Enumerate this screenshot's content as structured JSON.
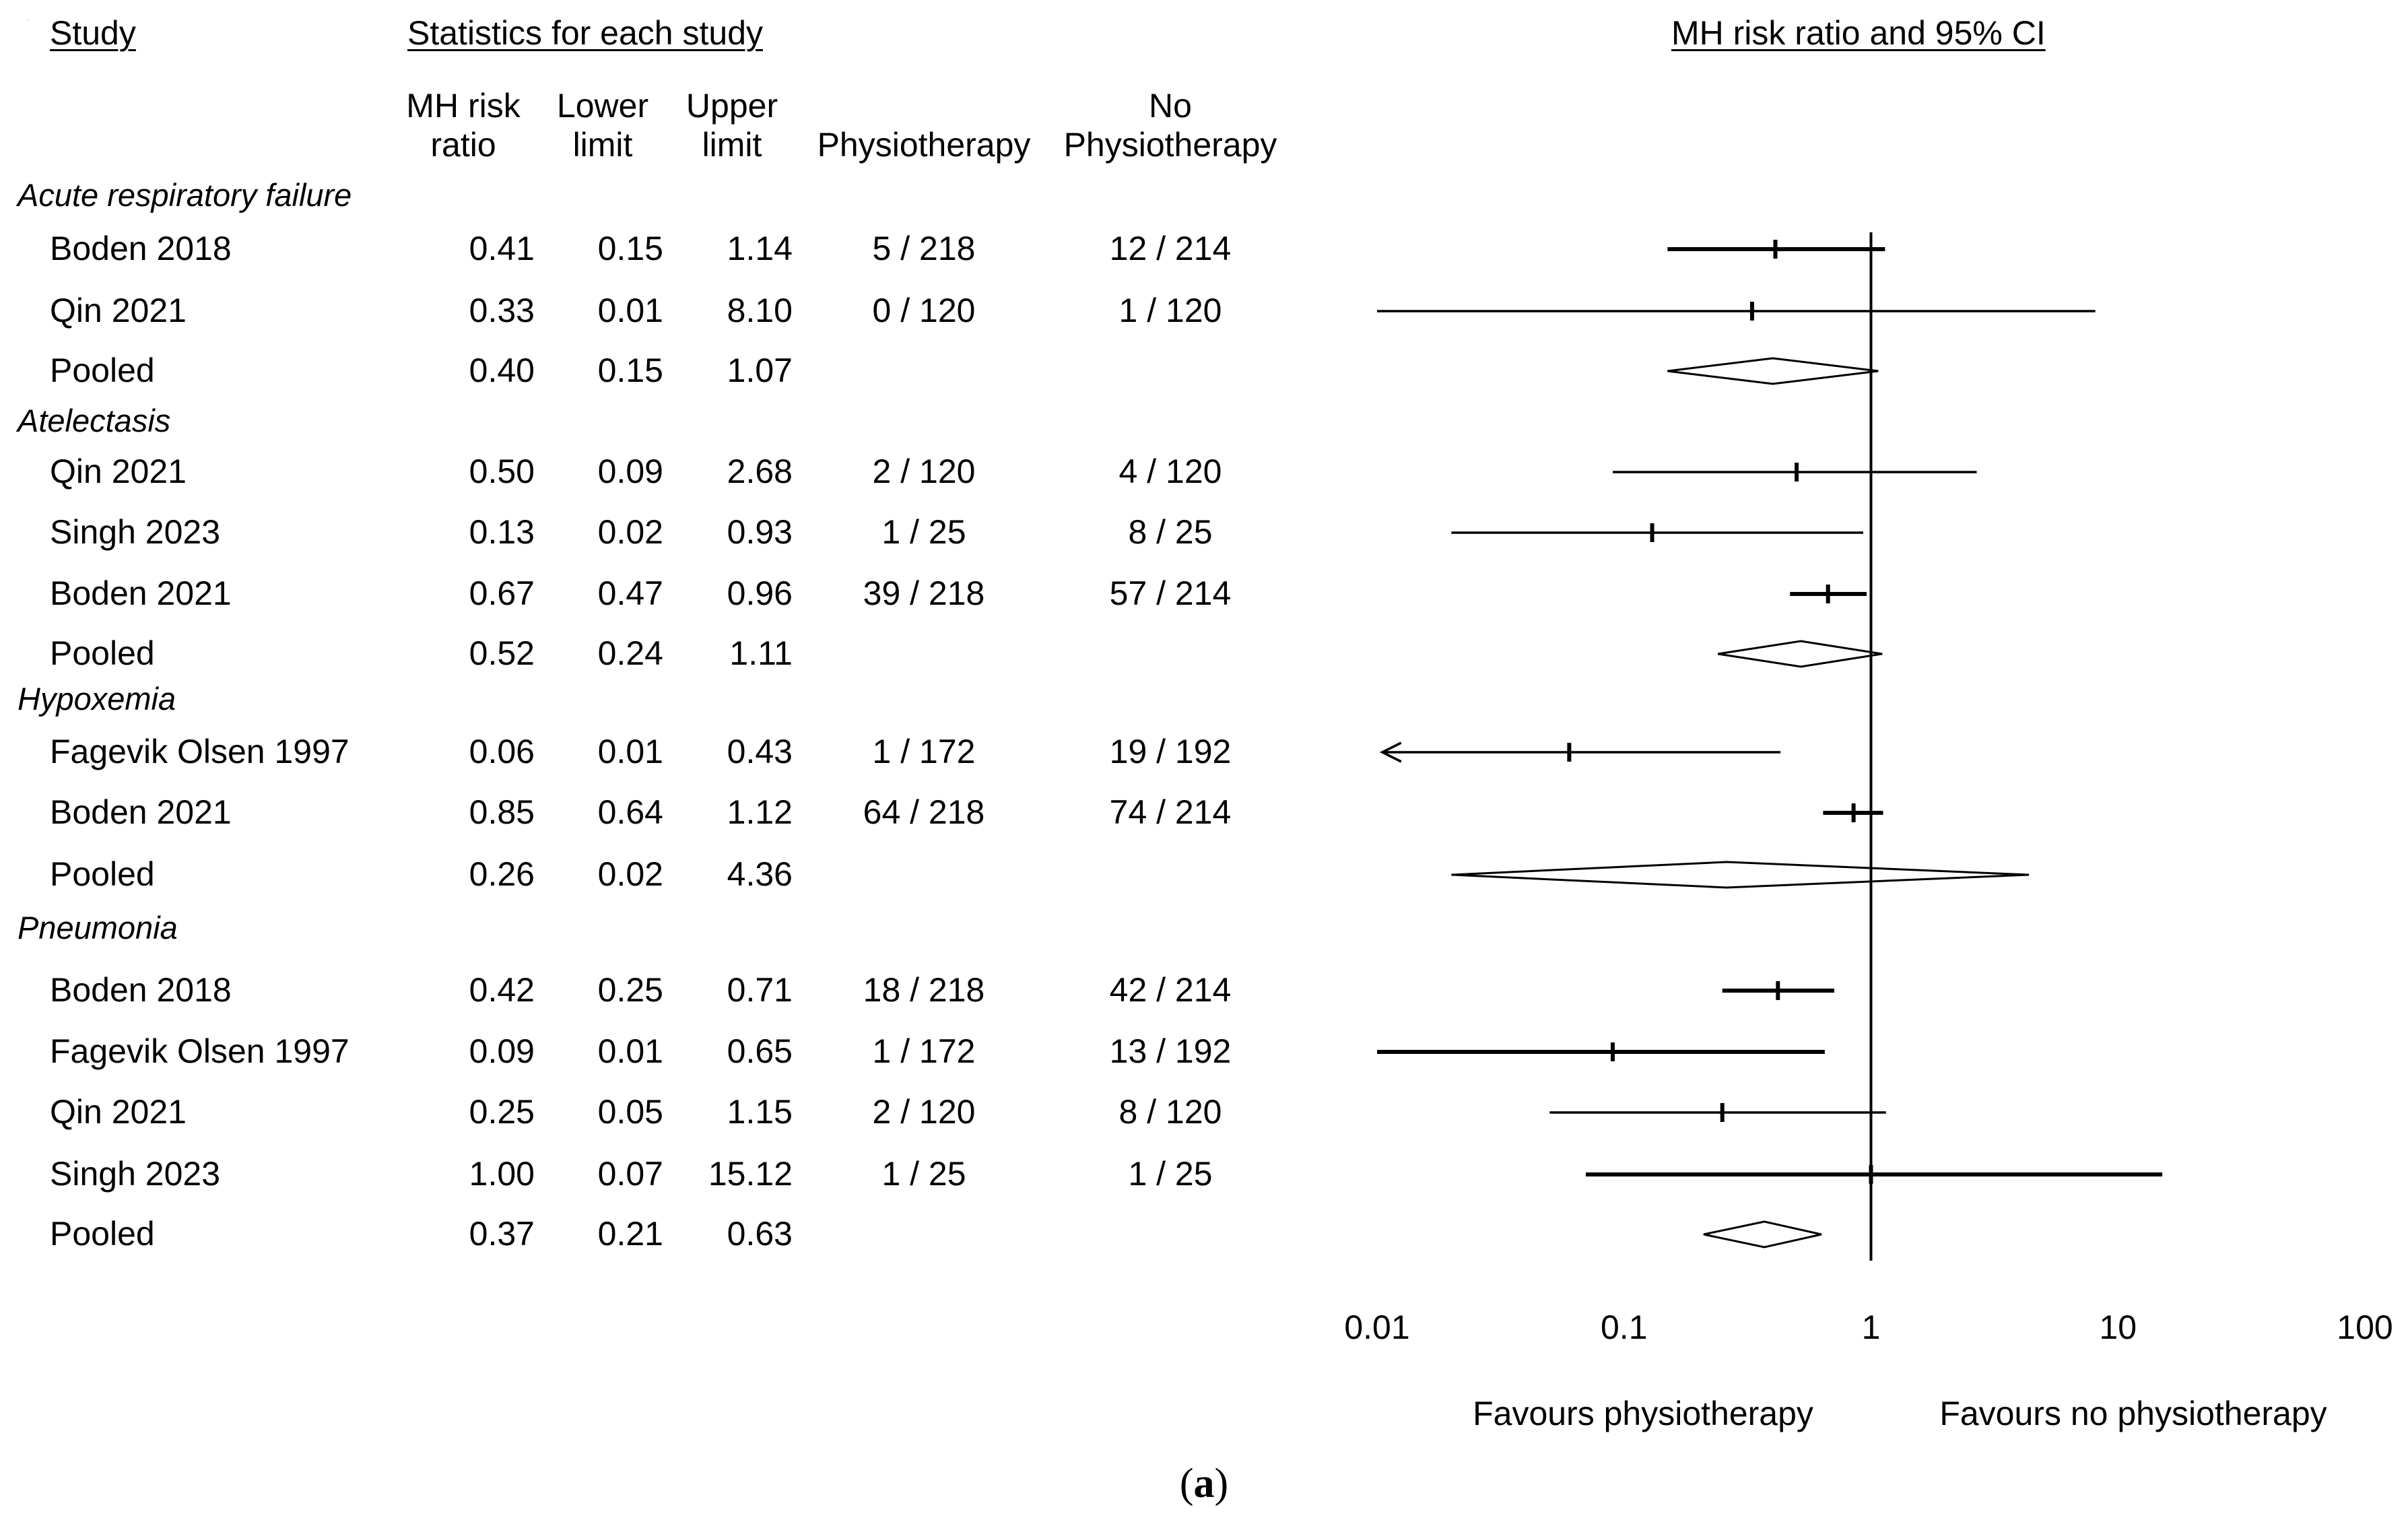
{
  "chart_data": {
    "type": "forest",
    "headers": {
      "study": "Study",
      "stats": "Statistics for each study",
      "plot": "MH risk ratio and 95% CI"
    },
    "columns": {
      "rr": [
        "MH risk",
        "ratio"
      ],
      "lower": [
        "Lower",
        "limit"
      ],
      "upper": [
        "Upper",
        "limit"
      ],
      "treat": "Physiotherapy",
      "control": [
        "No",
        "Physiotherapy"
      ]
    },
    "x_axis": {
      "scale": "log",
      "min": 0.01,
      "max": 100,
      "ticks": [
        "0.01",
        "0.1",
        "1",
        "10",
        "100"
      ],
      "reference": 1
    },
    "favours_left": "Favours physiotherapy",
    "favours_right": "Favours no physiotherapy",
    "caption": "(a)",
    "groups": [
      {
        "name": "Acute respiratory failure",
        "rows": [
          {
            "study": "Boden 2018",
            "rr": "0.41",
            "lower": "0.15",
            "upper": "1.14",
            "treat": "5 / 218",
            "control": "12 / 214",
            "weight": 2
          },
          {
            "study": "Qin 2021",
            "rr": "0.33",
            "lower": "0.01",
            "upper": "8.10",
            "treat": "0 / 120",
            "control": "1 / 120",
            "weight": 1
          },
          {
            "study": "Pooled",
            "rr": "0.40",
            "lower": "0.15",
            "upper": "1.07",
            "treat": "",
            "control": "",
            "pooled": true
          }
        ]
      },
      {
        "name": "Atelectasis",
        "rows": [
          {
            "study": "Qin 2021",
            "rr": "0.50",
            "lower": "0.09",
            "upper": "2.68",
            "treat": "2 / 120",
            "control": "4 / 120",
            "weight": 1
          },
          {
            "study": "Singh 2023",
            "rr": "0.13",
            "lower": "0.02",
            "upper": "0.93",
            "treat": "1 / 25",
            "control": "8 / 25",
            "weight": 1
          },
          {
            "study": "Boden 2021",
            "rr": "0.67",
            "lower": "0.47",
            "upper": "0.96",
            "treat": "39 / 218",
            "control": "57 / 214",
            "weight": 2
          },
          {
            "study": "Pooled",
            "rr": "0.52",
            "lower": "0.24",
            "upper": "1.11",
            "treat": "",
            "control": "",
            "pooled": true
          }
        ]
      },
      {
        "name": "Hypoxemia",
        "rows": [
          {
            "study": "Fagevik Olsen 1997",
            "rr": "0.06",
            "lower": "0.01",
            "upper": "0.43",
            "treat": "1 / 172",
            "control": "19 / 192",
            "weight": 1,
            "arrow_left": true
          },
          {
            "study": "Boden 2021",
            "rr": "0.85",
            "lower": "0.64",
            "upper": "1.12",
            "treat": "64 / 218",
            "control": "74 / 214",
            "weight": 2
          },
          {
            "study": "Pooled",
            "rr": "0.26",
            "lower": "0.02",
            "upper": "4.36",
            "treat": "",
            "control": "",
            "pooled": true
          }
        ]
      },
      {
        "name": "Pneumonia",
        "rows": [
          {
            "study": "Boden 2018",
            "rr": "0.42",
            "lower": "0.25",
            "upper": "0.71",
            "treat": "18 / 218",
            "control": "42 / 214",
            "weight": 2
          },
          {
            "study": "Fagevik Olsen 1997",
            "rr": "0.09",
            "lower": "0.01",
            "upper": "0.65",
            "treat": "1 / 172",
            "control": "13 / 192",
            "weight": 2
          },
          {
            "study": "Qin 2021",
            "rr": "0.25",
            "lower": "0.05",
            "upper": "1.15",
            "treat": "2 / 120",
            "control": "8 / 120",
            "weight": 1
          },
          {
            "study": "Singh 2023",
            "rr": "1.00",
            "lower": "0.07",
            "upper": "15.12",
            "treat": "1 / 25",
            "control": "1 / 25",
            "weight": 2
          },
          {
            "study": "Pooled",
            "rr": "0.37",
            "lower": "0.21",
            "upper": "0.63",
            "treat": "",
            "control": "",
            "pooled": true
          }
        ]
      }
    ]
  }
}
